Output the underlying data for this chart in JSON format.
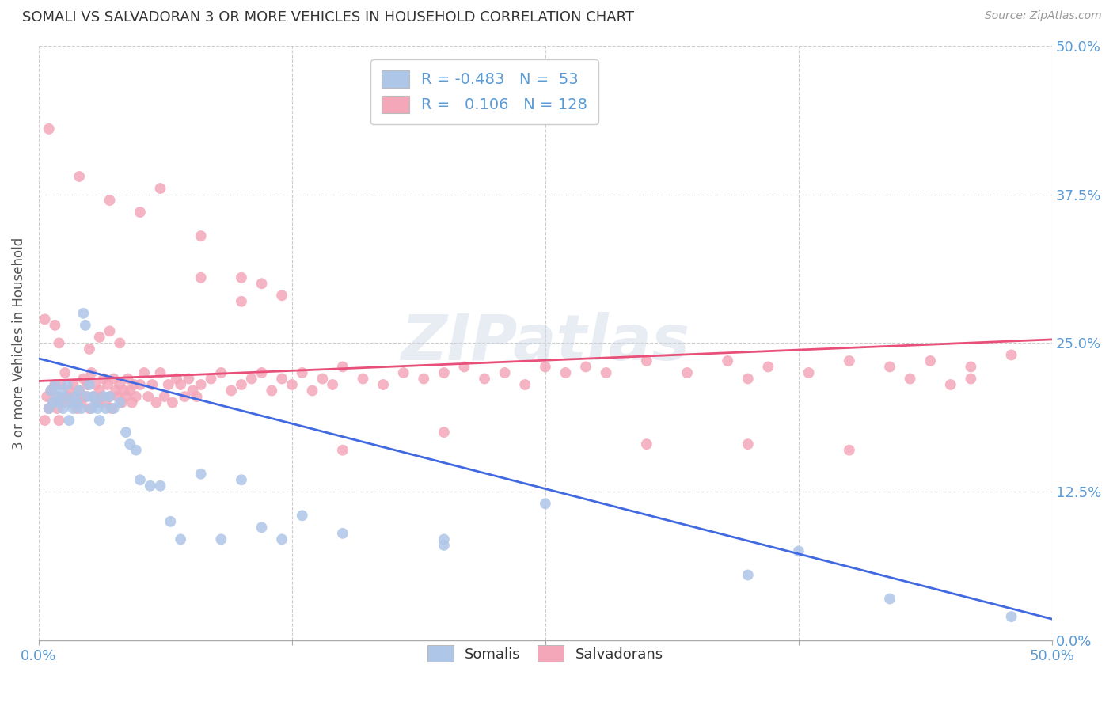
{
  "title": "SOMALI VS SALVADORAN 3 OR MORE VEHICLES IN HOUSEHOLD CORRELATION CHART",
  "source": "Source: ZipAtlas.com",
  "ylabel": "3 or more Vehicles in Household",
  "legend_labels": [
    "Somalis",
    "Salvadorans"
  ],
  "legend_r_somali": "-0.483",
  "legend_n_somali": "53",
  "legend_r_salvadoran": "0.106",
  "legend_n_salvadoran": "128",
  "somali_color": "#aec6e8",
  "salvadoran_color": "#f4a7b9",
  "somali_line_color": "#4169e1",
  "salvadoran_line_color": "#e8507a",
  "background_color": "#ffffff",
  "watermark": "ZIPatlas",
  "xlim": [
    0.0,
    0.5
  ],
  "ylim": [
    0.0,
    0.5
  ],
  "tick_vals": [
    0.0,
    0.125,
    0.25,
    0.375,
    0.5
  ],
  "right_tick_labels": [
    "0.0%",
    "12.5%",
    "25.0%",
    "37.5%",
    "50.0%"
  ],
  "x_edge_labels": [
    "0.0%",
    "50.0%"
  ],
  "somali_line": {
    "x0": 0.0,
    "y0": 0.237,
    "x1": 0.5,
    "y1": 0.018
  },
  "salvadoran_line": {
    "x0": 0.0,
    "y0": 0.218,
    "x1": 0.5,
    "y1": 0.253
  },
  "somali_points": [
    [
      0.005,
      0.195
    ],
    [
      0.006,
      0.21
    ],
    [
      0.007,
      0.2
    ],
    [
      0.008,
      0.215
    ],
    [
      0.009,
      0.205
    ],
    [
      0.01,
      0.2
    ],
    [
      0.011,
      0.21
    ],
    [
      0.012,
      0.195
    ],
    [
      0.013,
      0.205
    ],
    [
      0.014,
      0.215
    ],
    [
      0.015,
      0.185
    ],
    [
      0.016,
      0.2
    ],
    [
      0.017,
      0.195
    ],
    [
      0.018,
      0.205
    ],
    [
      0.019,
      0.2
    ],
    [
      0.02,
      0.21
    ],
    [
      0.021,
      0.195
    ],
    [
      0.022,
      0.275
    ],
    [
      0.023,
      0.265
    ],
    [
      0.024,
      0.205
    ],
    [
      0.025,
      0.215
    ],
    [
      0.026,
      0.195
    ],
    [
      0.027,
      0.205
    ],
    [
      0.028,
      0.2
    ],
    [
      0.029,
      0.195
    ],
    [
      0.03,
      0.185
    ],
    [
      0.032,
      0.205
    ],
    [
      0.033,
      0.195
    ],
    [
      0.035,
      0.205
    ],
    [
      0.037,
      0.195
    ],
    [
      0.04,
      0.2
    ],
    [
      0.043,
      0.175
    ],
    [
      0.045,
      0.165
    ],
    [
      0.048,
      0.16
    ],
    [
      0.05,
      0.135
    ],
    [
      0.055,
      0.13
    ],
    [
      0.06,
      0.13
    ],
    [
      0.065,
      0.1
    ],
    [
      0.07,
      0.085
    ],
    [
      0.08,
      0.14
    ],
    [
      0.09,
      0.085
    ],
    [
      0.1,
      0.135
    ],
    [
      0.11,
      0.095
    ],
    [
      0.12,
      0.085
    ],
    [
      0.13,
      0.105
    ],
    [
      0.15,
      0.09
    ],
    [
      0.2,
      0.085
    ],
    [
      0.25,
      0.115
    ],
    [
      0.2,
      0.08
    ],
    [
      0.35,
      0.055
    ],
    [
      0.375,
      0.075
    ],
    [
      0.42,
      0.035
    ],
    [
      0.48,
      0.02
    ]
  ],
  "salvadoran_points": [
    [
      0.003,
      0.185
    ],
    [
      0.004,
      0.205
    ],
    [
      0.005,
      0.195
    ],
    [
      0.006,
      0.21
    ],
    [
      0.007,
      0.2
    ],
    [
      0.008,
      0.215
    ],
    [
      0.009,
      0.195
    ],
    [
      0.01,
      0.205
    ],
    [
      0.011,
      0.215
    ],
    [
      0.012,
      0.2
    ],
    [
      0.013,
      0.225
    ],
    [
      0.014,
      0.205
    ],
    [
      0.015,
      0.21
    ],
    [
      0.016,
      0.2
    ],
    [
      0.017,
      0.215
    ],
    [
      0.018,
      0.205
    ],
    [
      0.019,
      0.195
    ],
    [
      0.02,
      0.21
    ],
    [
      0.021,
      0.2
    ],
    [
      0.022,
      0.22
    ],
    [
      0.023,
      0.205
    ],
    [
      0.024,
      0.215
    ],
    [
      0.025,
      0.195
    ],
    [
      0.026,
      0.225
    ],
    [
      0.027,
      0.205
    ],
    [
      0.028,
      0.215
    ],
    [
      0.029,
      0.2
    ],
    [
      0.03,
      0.21
    ],
    [
      0.031,
      0.205
    ],
    [
      0.032,
      0.22
    ],
    [
      0.033,
      0.2
    ],
    [
      0.034,
      0.215
    ],
    [
      0.035,
      0.205
    ],
    [
      0.036,
      0.195
    ],
    [
      0.037,
      0.22
    ],
    [
      0.038,
      0.21
    ],
    [
      0.039,
      0.205
    ],
    [
      0.04,
      0.215
    ],
    [
      0.041,
      0.2
    ],
    [
      0.042,
      0.21
    ],
    [
      0.043,
      0.205
    ],
    [
      0.044,
      0.22
    ],
    [
      0.045,
      0.21
    ],
    [
      0.046,
      0.2
    ],
    [
      0.047,
      0.215
    ],
    [
      0.048,
      0.205
    ],
    [
      0.05,
      0.215
    ],
    [
      0.052,
      0.225
    ],
    [
      0.054,
      0.205
    ],
    [
      0.056,
      0.215
    ],
    [
      0.058,
      0.2
    ],
    [
      0.06,
      0.225
    ],
    [
      0.062,
      0.205
    ],
    [
      0.064,
      0.215
    ],
    [
      0.066,
      0.2
    ],
    [
      0.068,
      0.22
    ],
    [
      0.07,
      0.215
    ],
    [
      0.072,
      0.205
    ],
    [
      0.074,
      0.22
    ],
    [
      0.076,
      0.21
    ],
    [
      0.078,
      0.205
    ],
    [
      0.08,
      0.215
    ],
    [
      0.085,
      0.22
    ],
    [
      0.09,
      0.225
    ],
    [
      0.095,
      0.21
    ],
    [
      0.1,
      0.215
    ],
    [
      0.105,
      0.22
    ],
    [
      0.11,
      0.225
    ],
    [
      0.115,
      0.21
    ],
    [
      0.12,
      0.22
    ],
    [
      0.125,
      0.215
    ],
    [
      0.13,
      0.225
    ],
    [
      0.135,
      0.21
    ],
    [
      0.14,
      0.22
    ],
    [
      0.145,
      0.215
    ],
    [
      0.15,
      0.23
    ],
    [
      0.16,
      0.22
    ],
    [
      0.17,
      0.215
    ],
    [
      0.18,
      0.225
    ],
    [
      0.19,
      0.22
    ],
    [
      0.2,
      0.225
    ],
    [
      0.21,
      0.23
    ],
    [
      0.22,
      0.22
    ],
    [
      0.23,
      0.225
    ],
    [
      0.24,
      0.215
    ],
    [
      0.25,
      0.23
    ],
    [
      0.26,
      0.225
    ],
    [
      0.27,
      0.23
    ],
    [
      0.28,
      0.225
    ],
    [
      0.3,
      0.235
    ],
    [
      0.32,
      0.225
    ],
    [
      0.34,
      0.235
    ],
    [
      0.36,
      0.23
    ],
    [
      0.38,
      0.225
    ],
    [
      0.4,
      0.235
    ],
    [
      0.42,
      0.23
    ],
    [
      0.44,
      0.235
    ],
    [
      0.46,
      0.23
    ],
    [
      0.48,
      0.24
    ],
    [
      0.005,
      0.43
    ],
    [
      0.02,
      0.39
    ],
    [
      0.035,
      0.37
    ],
    [
      0.05,
      0.36
    ],
    [
      0.06,
      0.38
    ],
    [
      0.08,
      0.34
    ],
    [
      0.1,
      0.305
    ],
    [
      0.12,
      0.29
    ],
    [
      0.15,
      0.16
    ],
    [
      0.2,
      0.175
    ],
    [
      0.3,
      0.165
    ],
    [
      0.35,
      0.165
    ],
    [
      0.4,
      0.16
    ],
    [
      0.43,
      0.22
    ],
    [
      0.46,
      0.22
    ],
    [
      0.003,
      0.27
    ],
    [
      0.008,
      0.265
    ],
    [
      0.01,
      0.25
    ],
    [
      0.025,
      0.245
    ],
    [
      0.03,
      0.255
    ],
    [
      0.035,
      0.26
    ],
    [
      0.04,
      0.25
    ],
    [
      0.08,
      0.305
    ],
    [
      0.1,
      0.285
    ],
    [
      0.11,
      0.3
    ],
    [
      0.35,
      0.22
    ],
    [
      0.45,
      0.215
    ],
    [
      0.005,
      0.195
    ],
    [
      0.01,
      0.185
    ]
  ]
}
